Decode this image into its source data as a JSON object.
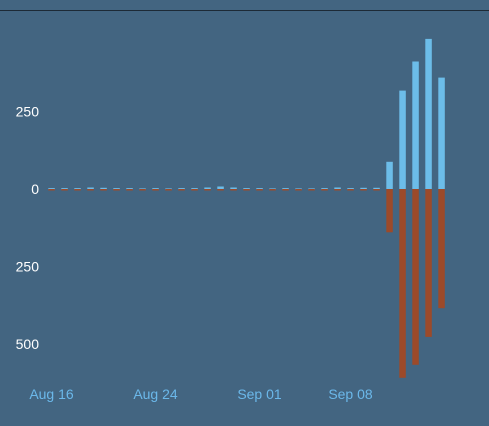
{
  "chart_data": {
    "type": "bar",
    "title": "",
    "xlabel": "",
    "ylabel": "",
    "grid": false,
    "legend": "none",
    "ylim": [
      -600,
      500
    ],
    "y_ticks": [
      {
        "value": 250,
        "label": "250"
      },
      {
        "value": 0,
        "label": "0"
      },
      {
        "value": -250,
        "label": "250"
      },
      {
        "value": -500,
        "label": "500"
      }
    ],
    "x_ticks": [
      {
        "date": "2020-08-16",
        "label": "Aug 16"
      },
      {
        "date": "2020-08-24",
        "label": "Aug 24"
      },
      {
        "date": "2020-09-01",
        "label": "Sep 01"
      },
      {
        "date": "2020-09-08",
        "label": "Sep 08"
      }
    ],
    "x": [
      "2020-08-16",
      "2020-08-17",
      "2020-08-18",
      "2020-08-19",
      "2020-08-20",
      "2020-08-21",
      "2020-08-22",
      "2020-08-23",
      "2020-08-24",
      "2020-08-25",
      "2020-08-26",
      "2020-08-27",
      "2020-08-28",
      "2020-08-29",
      "2020-08-30",
      "2020-08-31",
      "2020-09-01",
      "2020-09-02",
      "2020-09-03",
      "2020-09-04",
      "2020-09-05",
      "2020-09-06",
      "2020-09-07",
      "2020-09-08",
      "2020-09-09",
      "2020-09-10",
      "2020-09-11",
      "2020-09-12",
      "2020-09-13",
      "2020-09-14",
      "2020-09-15"
    ],
    "series": [
      {
        "color": "#6cbde9",
        "values": [
          3,
          3,
          3,
          5,
          4,
          3,
          3,
          2,
          3,
          2,
          3,
          3,
          5,
          8,
          5,
          3,
          3,
          2,
          3,
          2,
          2,
          3,
          5,
          3,
          4,
          4,
          88,
          318,
          412,
          485,
          360
        ]
      },
      {
        "color": "#9c4a2a",
        "values": [
          -2,
          -2,
          -3,
          -2,
          -2,
          -2,
          -3,
          -2,
          -2,
          -3,
          -2,
          -2,
          -2,
          -3,
          -2,
          -2,
          -2,
          -2,
          -3,
          -2,
          -2,
          -2,
          -2,
          -2,
          -3,
          -2,
          -140,
          -610,
          -568,
          -478,
          -385
        ]
      }
    ]
  }
}
